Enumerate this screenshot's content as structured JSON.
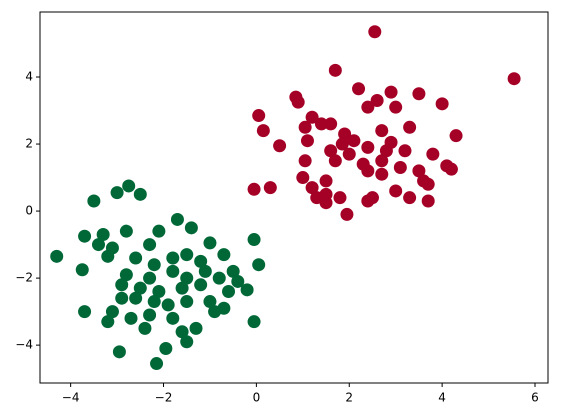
{
  "chart_data": {
    "type": "scatter",
    "xlim": [
      -4.66,
      6.28
    ],
    "ylim": [
      -5.13,
      5.94
    ],
    "xticks": [
      {
        "value": -4,
        "label": "−4"
      },
      {
        "value": -2,
        "label": "−2"
      },
      0,
      2,
      4,
      6
    ],
    "yticks": [
      {
        "value": -4,
        "label": "−4"
      },
      {
        "value": -2,
        "label": "−2"
      },
      0,
      2,
      4
    ],
    "grid": false,
    "series": [
      {
        "color": "#a50026",
        "x": [
          2.55,
          5.55,
          1.7,
          0.85,
          0.9,
          2.2,
          2.9,
          3.5,
          4.0,
          2.6,
          2.4,
          3.0,
          1.2,
          1.4,
          0.05,
          0.15,
          1.05,
          1.6,
          1.9,
          2.1,
          2.7,
          3.3,
          4.3,
          0.5,
          1.1,
          1.6,
          2.0,
          2.4,
          2.9,
          3.2,
          3.8,
          1.05,
          1.7,
          2.3,
          2.7,
          3.1,
          3.5,
          4.1,
          4.2,
          1.0,
          1.5,
          2.4,
          2.7,
          3.6,
          3.7,
          1.2,
          1.5,
          1.3,
          1.8,
          2.5,
          3.3,
          3.7,
          -0.05,
          0.3,
          1.95,
          1.5,
          2.4,
          3.0,
          2.8,
          1.85
        ],
        "values": [
          5.35,
          3.95,
          4.2,
          3.4,
          3.25,
          3.65,
          3.55,
          3.5,
          3.2,
          3.3,
          3.1,
          3.1,
          2.8,
          2.6,
          2.85,
          2.4,
          2.5,
          2.6,
          2.3,
          2.1,
          2.4,
          2.5,
          2.25,
          1.95,
          2.1,
          1.8,
          1.7,
          1.9,
          2.05,
          1.8,
          1.7,
          1.5,
          1.5,
          1.4,
          1.5,
          1.3,
          1.2,
          1.35,
          1.25,
          1.0,
          0.9,
          1.2,
          1.1,
          0.9,
          0.8,
          0.7,
          0.5,
          0.4,
          0.4,
          0.4,
          0.4,
          0.3,
          0.65,
          0.7,
          -0.1,
          0.25,
          0.3,
          0.6,
          1.8,
          2.0
        ]
      },
      {
        "color": "#006837",
        "x": [
          -4.3,
          -3.75,
          -3.7,
          -3.4,
          -3.3,
          -3.1,
          -2.75,
          -2.5,
          -3.5,
          -3.0,
          -2.8,
          -2.3,
          -2.1,
          -1.7,
          -1.4,
          -1.0,
          -0.05,
          -3.2,
          -2.6,
          -2.2,
          -1.8,
          -1.5,
          -1.2,
          -0.7,
          -0.5,
          0.05,
          -2.8,
          -2.3,
          -1.8,
          -1.5,
          -1.1,
          -0.8,
          -0.4,
          -2.9,
          -2.5,
          -2.1,
          -1.6,
          -1.2,
          -0.6,
          -0.2,
          -3.7,
          -3.1,
          -2.9,
          -2.6,
          -2.2,
          -1.9,
          -1.5,
          -1.0,
          -0.7,
          -3.2,
          -2.7,
          -2.3,
          -1.8,
          -1.3,
          -0.9,
          -0.05,
          -2.4,
          -1.6,
          -1.95,
          -2.95,
          -2.15,
          -1.5
        ],
        "values": [
          -1.35,
          -1.75,
          -0.75,
          -1.0,
          -0.7,
          -1.1,
          0.75,
          0.5,
          0.3,
          0.55,
          -0.6,
          -1.0,
          -0.6,
          -0.25,
          -0.5,
          -0.95,
          -0.85,
          -1.35,
          -1.4,
          -1.6,
          -1.4,
          -1.3,
          -1.5,
          -1.3,
          -1.8,
          -1.6,
          -1.9,
          -2.0,
          -1.8,
          -2.0,
          -1.8,
          -2.0,
          -2.1,
          -2.2,
          -2.3,
          -2.4,
          -2.3,
          -2.2,
          -2.4,
          -2.35,
          -3.0,
          -3.0,
          -2.6,
          -2.6,
          -2.7,
          -2.8,
          -2.7,
          -2.7,
          -2.9,
          -3.3,
          -3.2,
          -3.1,
          -3.2,
          -3.5,
          -3.0,
          -3.3,
          -3.5,
          -3.6,
          -4.1,
          -4.2,
          -4.55,
          -3.9
        ]
      }
    ]
  }
}
